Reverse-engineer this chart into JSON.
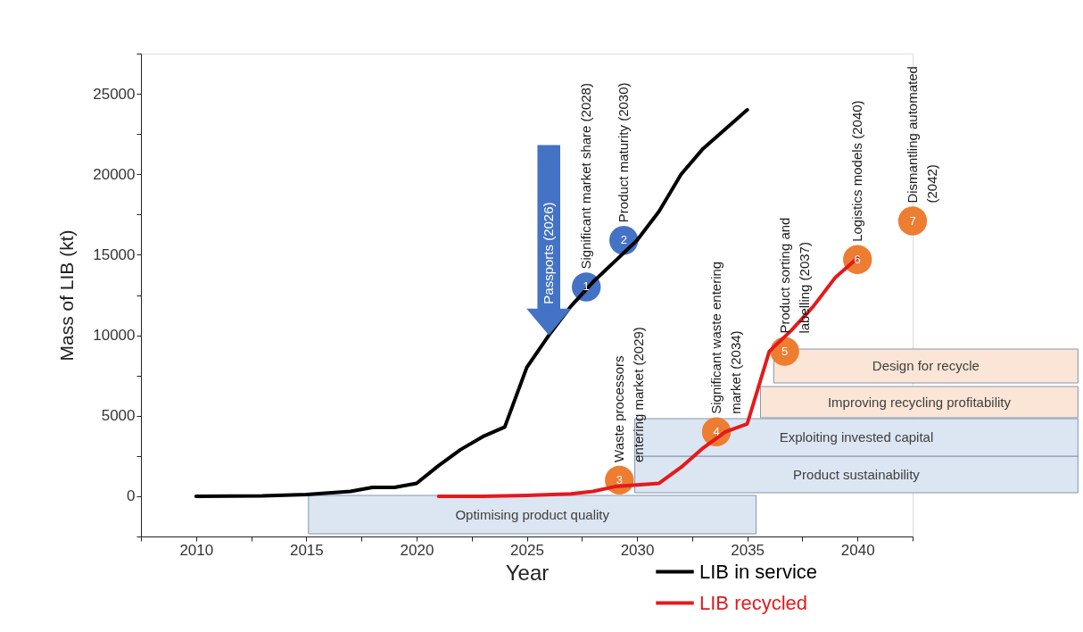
{
  "chart_data": {
    "type": "line",
    "xlabel": "Year",
    "ylabel": "Mass of LIB (kt)",
    "xlim": [
      2007.5,
      2042.5
    ],
    "ylim": [
      -2500,
      27500
    ],
    "xticks": [
      {
        "value": 2007.5,
        "label": null
      },
      2010,
      {
        "value": 2012.5,
        "label": null
      },
      2015,
      {
        "value": 2017.5,
        "label": null
      },
      2020,
      {
        "value": 2022.5,
        "label": null
      },
      2025,
      {
        "value": 2027.5,
        "label": null
      },
      2030,
      {
        "value": 2032.5,
        "label": null
      },
      2035,
      {
        "value": 2037.5,
        "label": null
      },
      2040,
      {
        "value": 2042.5,
        "label": null
      }
    ],
    "yticks": [
      {
        "value": -2500,
        "label": null
      },
      0,
      {
        "value": 2500,
        "label": null
      },
      5000,
      {
        "value": 7500,
        "label": null
      },
      10000,
      {
        "value": 12500,
        "label": null
      },
      15000,
      {
        "value": 17500,
        "label": null
      },
      20000,
      {
        "value": 22500,
        "label": null
      },
      25000,
      {
        "value": 27500,
        "label": null
      }
    ],
    "series": [
      {
        "name": "LIB in service",
        "color": "#000000",
        "x": [
          2010,
          2013,
          2015,
          2016,
          2017,
          2018,
          2019,
          2020,
          2021,
          2022,
          2023,
          2024,
          2025,
          2026,
          2027,
          2028,
          2029,
          2030,
          2031,
          2032,
          2033,
          2034,
          2035
        ],
        "values": [
          0,
          20,
          100,
          200,
          300,
          550,
          550,
          800,
          1900,
          2900,
          3700,
          4300,
          8000,
          10000,
          11800,
          13300,
          14600,
          15900,
          17700,
          20000,
          21600,
          22800,
          24000
        ]
      },
      {
        "name": "LIB recycled",
        "color": "#e31a1c",
        "x": [
          2021,
          2023,
          2025,
          2027,
          2028,
          2029,
          2030,
          2031,
          2032,
          2033,
          2034,
          2035,
          2036,
          2037,
          2038,
          2039,
          2040
        ],
        "values": [
          0,
          0,
          50,
          150,
          300,
          600,
          700,
          800,
          1800,
          3000,
          4000,
          4500,
          9000,
          10300,
          11800,
          13600,
          14800
        ]
      }
    ],
    "legend": "bottom right",
    "bands": [
      {
        "axis": "x",
        "from": 2015.1,
        "to": 2035.4,
        "label": "Optimising product quality",
        "color": "#dce6f2"
      },
      {
        "axis": "x",
        "from": 2029.9,
        "to": 2050,
        "label": "Product sustainability",
        "color": "#dce6f2"
      },
      {
        "axis": "x",
        "from": 2029.9,
        "to": 2050,
        "label": "Exploiting invested capital",
        "color": "#dce6f2"
      },
      {
        "axis": "x",
        "from": 2035.6,
        "to": 2050,
        "label": "Improving recycling profitability",
        "color": "#fbe5d6"
      },
      {
        "axis": "x",
        "from": 2036.2,
        "to": 2050,
        "label": "Design for recycle",
        "color": "#fbe5d6"
      }
    ],
    "annotations": [
      {
        "text": "1",
        "x": 2027.7,
        "y": 13000
      },
      {
        "text": "2",
        "x": 2029.4,
        "y": 15900
      },
      {
        "text": "3",
        "x": 2029.2,
        "y": 1000
      },
      {
        "text": "4",
        "x": 2033.6,
        "y": 4000
      },
      {
        "text": "5",
        "x": 2036.7,
        "y": 9000
      },
      {
        "text": "6",
        "x": 2040,
        "y": 14700
      },
      {
        "text": "7",
        "x": 2042.5,
        "y": 17100
      },
      "Significant market share (2028)",
      "Product maturity (2030)",
      "Waste processors\nentering market (2029)",
      "Significant waste entering\nmarket (2034)",
      "Product sorting and\nlabelling (2037)",
      "Logistics models (2040)",
      "Dismantling automated\n(2042)",
      {
        "text": "Passports (2026)",
        "x": 2026,
        "y": 10000
      }
    ]
  }
}
